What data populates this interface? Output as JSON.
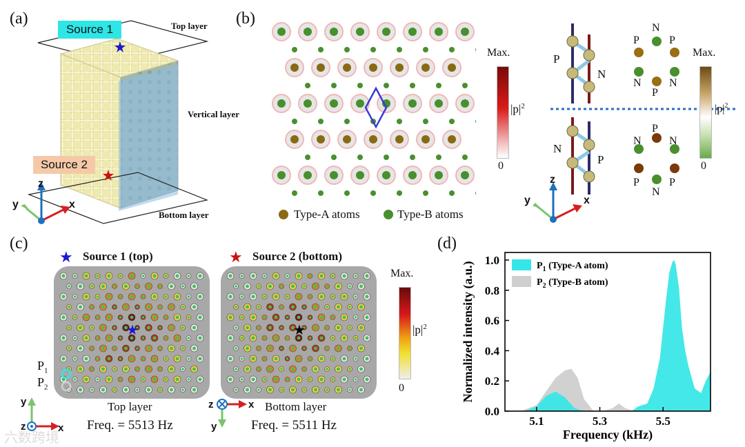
{
  "panels": {
    "a": {
      "label": "(a)",
      "source1": "Source 1",
      "source2": "Source 2",
      "top_layer": "Top layer",
      "vertical_layer": "Vertical layer",
      "bottom_layer": "Bottom layer",
      "axes": {
        "z": "z",
        "y": "y",
        "x": "x"
      }
    },
    "b": {
      "label": "(b)",
      "colorbar_max": "Max.",
      "colorbar_min": "0",
      "colorbar_label": "|p|",
      "colorbar_label_sup": "2",
      "legend_a": "Type-A atoms",
      "legend_b": "Type-B atoms",
      "right_colorbar_max": "Max.",
      "right_colorbar_min": "0",
      "right_colorbar_label": "|p|",
      "right_colorbar_label_sup": "2",
      "P": "P",
      "N": "N",
      "axes": {
        "z": "z",
        "y": "y",
        "x": "x"
      }
    },
    "c": {
      "label": "(c)",
      "source1": "Source 1 (top)",
      "source2": "Source 2 (bottom)",
      "top_layer": "Top layer",
      "bottom_layer": "Bottom layer",
      "freq_top": "Freq. = 5513 Hz",
      "freq_bottom": "Freq. = 5511 Hz",
      "p1": "P",
      "p1_sub": "1",
      "p2": "P",
      "p2_sub": "2",
      "colorbar_max": "Max.",
      "colorbar_min": "0",
      "colorbar_label": "|p|",
      "colorbar_label_sup": "2",
      "axes": {
        "y": "y",
        "z": "z",
        "x": "x",
        "z2": "z",
        "x2": "x",
        "y2": "y"
      }
    },
    "d": {
      "label": "(d)"
    }
  },
  "watermark": "六数跨境",
  "colors": {
    "cyan": "#35e6e6",
    "gray": "#cfcfcf",
    "typeA": "#8b6914",
    "typeB": "#4a8f2e",
    "lattice": "#efeab8",
    "blue_layer": "#9cc3e0"
  },
  "chart_data": {
    "type": "area",
    "title": "",
    "xlabel": "Frequency (kHz)",
    "ylabel": "Normalized intensity (a.u.)",
    "xlim": [
      5.0,
      5.65
    ],
    "ylim": [
      0,
      1.05
    ],
    "xticks": [
      5.1,
      5.3,
      5.5
    ],
    "xtick_labels": [
      "5.1",
      "5.3",
      "5.5"
    ],
    "yticks": [
      0.0,
      0.2,
      0.4,
      0.6,
      0.8,
      1.0
    ],
    "ytick_labels": [
      "0.0",
      "0.2",
      "0.4",
      "0.6",
      "0.8",
      "1.0"
    ],
    "legend_position": "top-left",
    "series": [
      {
        "name": "P",
        "name_sub": "1",
        "name_rest": " (Type-A atom)",
        "color": "#35e6e6",
        "x": [
          5.0,
          5.06,
          5.1,
          5.13,
          5.16,
          5.19,
          5.22,
          5.25,
          5.3,
          5.35,
          5.4,
          5.42,
          5.45,
          5.47,
          5.49,
          5.5,
          5.51,
          5.52,
          5.53,
          5.535,
          5.54,
          5.55,
          5.56,
          5.57,
          5.58,
          5.6,
          5.62,
          5.635,
          5.65
        ],
        "y": [
          0.0,
          0.0,
          0.03,
          0.1,
          0.13,
          0.09,
          0.02,
          0.0,
          0.0,
          0.0,
          0.0,
          0.03,
          0.05,
          0.15,
          0.35,
          0.55,
          0.75,
          0.92,
          0.99,
          1.0,
          0.97,
          0.82,
          0.55,
          0.4,
          0.3,
          0.15,
          0.12,
          0.2,
          0.26
        ]
      },
      {
        "name": "P",
        "name_sub": "2",
        "name_rest": " (Type-B atom)",
        "color": "#cfcfcf",
        "x": [
          5.0,
          5.05,
          5.1,
          5.13,
          5.16,
          5.19,
          5.21,
          5.23,
          5.25,
          5.28,
          5.31,
          5.34,
          5.36,
          5.38,
          5.41,
          5.45
        ],
        "y": [
          0.0,
          0.0,
          0.04,
          0.13,
          0.22,
          0.27,
          0.28,
          0.22,
          0.08,
          0.0,
          0.0,
          0.02,
          0.05,
          0.02,
          0.0,
          0.0
        ]
      }
    ]
  }
}
